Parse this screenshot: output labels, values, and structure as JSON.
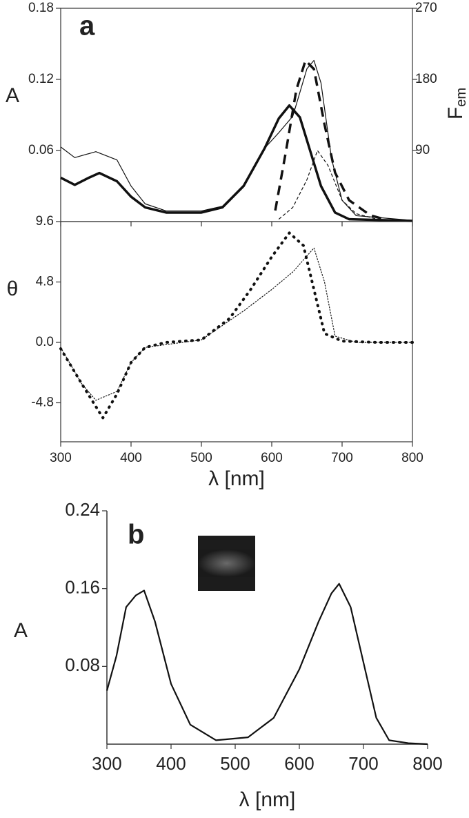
{
  "chart_data": [
    {
      "type": "line",
      "label": "a",
      "ylabel": "A",
      "y2label": "F",
      "y2label_sub": "em",
      "xlim": [
        300,
        800
      ],
      "xticks": [
        300,
        400,
        500,
        600,
        700,
        800
      ],
      "ylim": [
        0,
        0.18
      ],
      "yticks": [
        0.06,
        0.12,
        0.18
      ],
      "y2lim": [
        0,
        270
      ],
      "y2ticks": [
        90,
        180,
        270
      ],
      "series": [
        {
          "color": "#111",
          "style": "solid",
          "width": 3.5,
          "x": [
            300,
            320,
            340,
            355,
            380,
            400,
            420,
            450,
            500,
            530,
            560,
            590,
            610,
            625,
            640,
            655,
            670,
            690,
            710,
            800
          ],
          "values": [
            0.037,
            0.031,
            0.037,
            0.041,
            0.034,
            0.021,
            0.012,
            0.0076,
            0.0076,
            0.012,
            0.03,
            0.062,
            0.087,
            0.098,
            0.088,
            0.059,
            0.03,
            0.0076,
            0.002,
            0.0006
          ]
        },
        {
          "color": "#111",
          "style": "solid",
          "width": 1.2,
          "x": [
            300,
            320,
            350,
            380,
            400,
            420,
            450,
            500,
            530,
            560,
            590,
            610,
            630,
            650,
            660,
            670,
            685,
            700,
            720,
            760,
            800
          ],
          "values": [
            0.063,
            0.054,
            0.059,
            0.052,
            0.03,
            0.015,
            0.009,
            0.009,
            0.013,
            0.031,
            0.062,
            0.075,
            0.089,
            0.129,
            0.136,
            0.117,
            0.053,
            0.018,
            0.005,
            0.003,
            0.001
          ]
        },
        {
          "color": "#111",
          "style": "dashed",
          "width": 3.5,
          "axis": "y2",
          "x": [
            605,
            620,
            635,
            648,
            660,
            675,
            690,
            710,
            740,
            760
          ],
          "values": [
            14,
            88,
            167,
            204,
            193,
            123,
            62,
            27,
            8,
            3
          ]
        },
        {
          "color": "#111",
          "style": "dashed",
          "width": 1.2,
          "axis": "y2",
          "x": [
            610,
            630,
            650,
            665,
            680,
            700,
            720,
            750
          ],
          "values": [
            3,
            18,
            53,
            90,
            71,
            27,
            10,
            3
          ]
        }
      ]
    },
    {
      "type": "line",
      "ylabel": "θ",
      "xlabel": "λ [nm]",
      "xlim": [
        300,
        800
      ],
      "xticks": [
        300,
        400,
        500,
        600,
        700,
        800
      ],
      "ylim": [
        -7.9,
        9.6
      ],
      "yticks": [
        -4.8,
        {
          "value": 0,
          "label": "0.0"
        },
        4.8,
        9.6
      ],
      "series": [
        {
          "color": "#111",
          "style": "dotted",
          "width": 4,
          "x": [
            300,
            330,
            360,
            380,
            400,
            420,
            450,
            500,
            540,
            570,
            600,
            625,
            645,
            660,
            675,
            700,
            750,
            800
          ],
          "values": [
            -0.5,
            -3.3,
            -6.0,
            -4.1,
            -1.6,
            -0.4,
            0,
            0.2,
            1.9,
            4.2,
            6.8,
            8.7,
            7.7,
            4.2,
            0.7,
            0.1,
            0,
            0
          ]
        },
        {
          "color": "#111",
          "style": "dotted",
          "width": 1.2,
          "x": [
            300,
            330,
            350,
            380,
            400,
            420,
            500,
            560,
            600,
            630,
            660,
            675,
            690,
            720,
            800
          ],
          "values": [
            -0.4,
            -3.3,
            -4.6,
            -3.9,
            -1.6,
            -0.4,
            0.2,
            2.5,
            4.2,
            5.6,
            7.5,
            4.8,
            0.5,
            0,
            0
          ]
        }
      ]
    },
    {
      "type": "line",
      "label": "b",
      "ylabel": "A",
      "xlabel": "λ [nm]",
      "xlim": [
        300,
        800
      ],
      "xticks": [
        300,
        400,
        500,
        600,
        700,
        800
      ],
      "ylim": [
        0,
        0.24
      ],
      "yticks": [
        0.08,
        0.16,
        0.24
      ],
      "series": [
        {
          "color": "#111",
          "style": "solid",
          "width": 2.2,
          "x": [
            300,
            315,
            330,
            345,
            358,
            375,
            400,
            430,
            470,
            520,
            560,
            600,
            630,
            650,
            662,
            680,
            700,
            720,
            740,
            770,
            800
          ],
          "values": [
            0.055,
            0.091,
            0.141,
            0.153,
            0.158,
            0.126,
            0.062,
            0.02,
            0.004,
            0.007,
            0.027,
            0.077,
            0.126,
            0.155,
            0.165,
            0.141,
            0.084,
            0.027,
            0.004,
            0.001,
            0
          ]
        }
      ]
    }
  ]
}
